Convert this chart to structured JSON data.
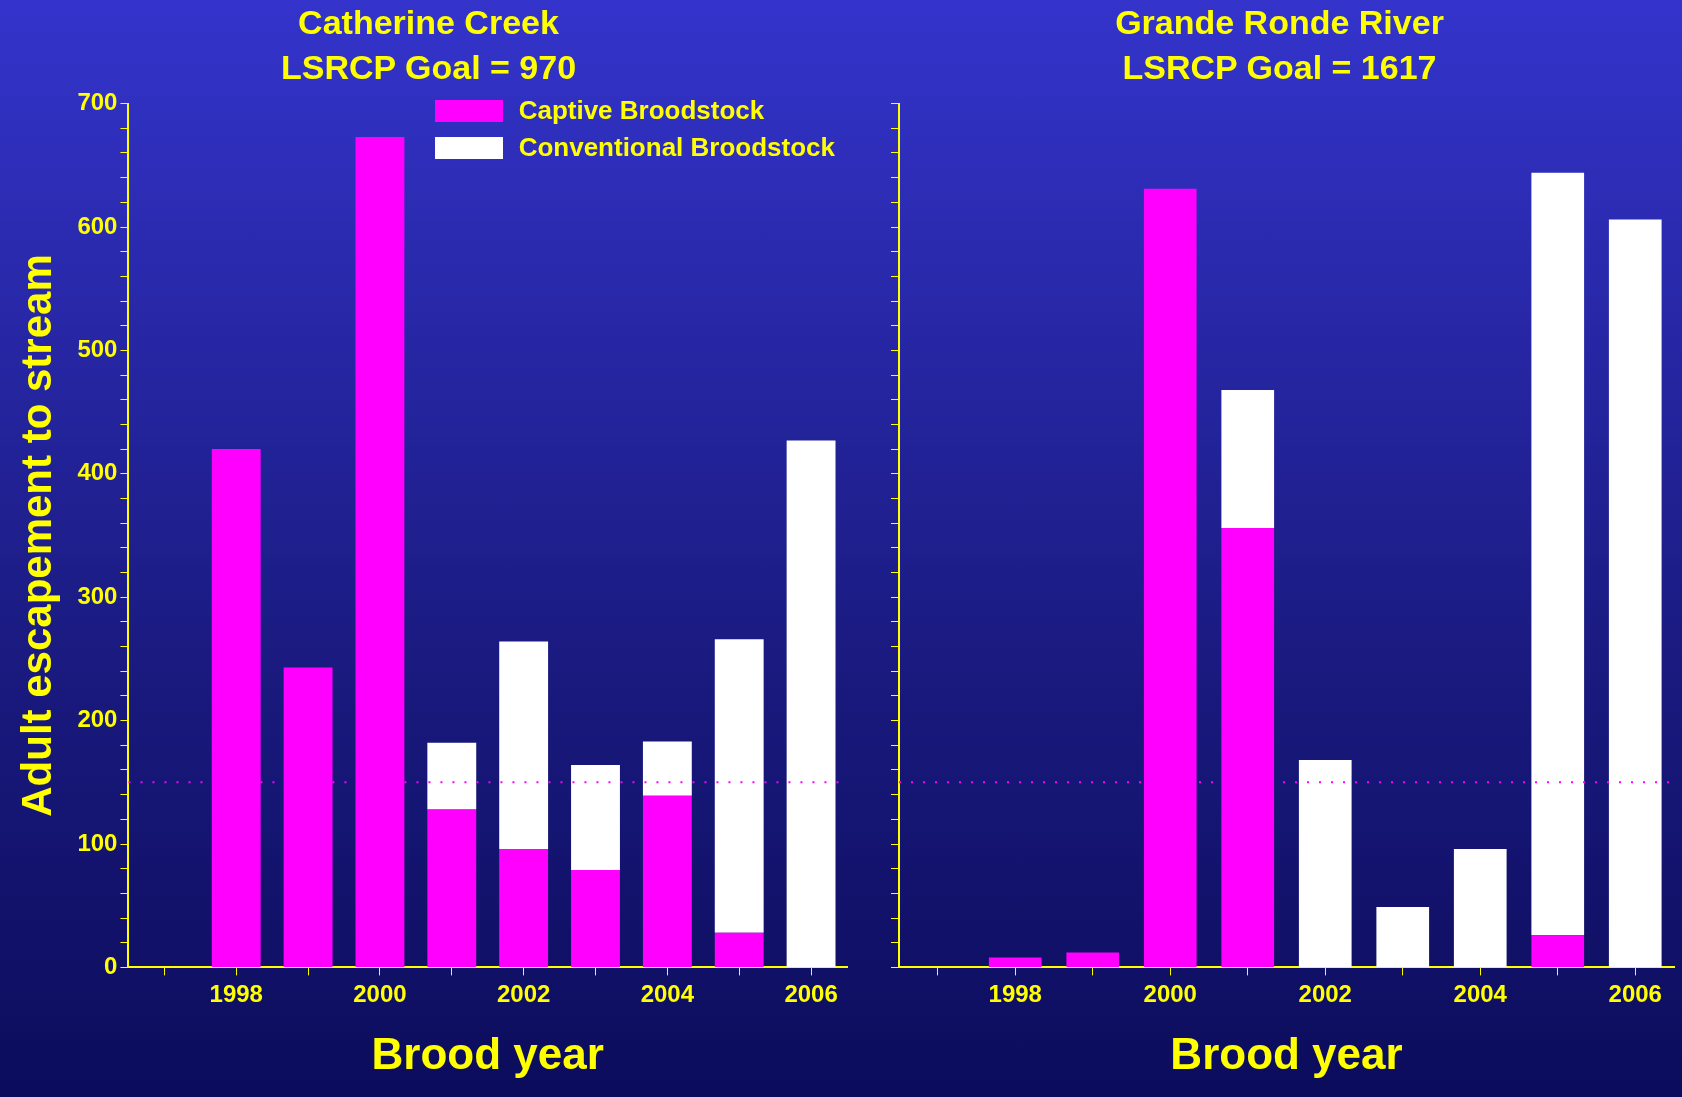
{
  "chart_data": [
    {
      "type": "bar",
      "title": "Catherine Creek",
      "subtitle": "LSRCP Goal = 970",
      "xlabel": "Brood year",
      "ylabel": "Adult escapement to stream",
      "stacked": true,
      "legend": "top right",
      "categories": [
        null,
        "1998",
        null,
        "2000",
        null,
        "2002",
        null,
        "2004",
        null,
        "2006"
      ],
      "series": [
        {
          "name": "Captive Broodstock",
          "color": "#ff00ff",
          "values": [
            null,
            420,
            243,
            673,
            128,
            96,
            79,
            139,
            28,
            null
          ]
        },
        {
          "name": "Conventional Broodstock",
          "color": "#ffffff",
          "values": [
            null,
            null,
            null,
            null,
            54,
            168,
            85,
            44,
            238,
            427
          ]
        }
      ],
      "ylim": [
        0,
        700
      ],
      "yticks": [
        0,
        {
          "value": 20,
          "label": null
        },
        {
          "value": 40,
          "label": null
        },
        {
          "value": 60,
          "label": null
        },
        {
          "value": 80,
          "label": null
        },
        100,
        {
          "value": 120,
          "label": null
        },
        {
          "value": 140,
          "label": null
        },
        {
          "value": 160,
          "label": null
        },
        {
          "value": 180,
          "label": null
        },
        200,
        {
          "value": 220,
          "label": null
        },
        {
          "value": 240,
          "label": null
        },
        {
          "value": 260,
          "label": null
        },
        {
          "value": 280,
          "label": null
        },
        300,
        {
          "value": 320,
          "label": null
        },
        {
          "value": 340,
          "label": null
        },
        {
          "value": 360,
          "label": null
        },
        {
          "value": 380,
          "label": null
        },
        400,
        {
          "value": 420,
          "label": null
        },
        {
          "value": 440,
          "label": null
        },
        {
          "value": 460,
          "label": null
        },
        {
          "value": 480,
          "label": null
        },
        500,
        {
          "value": 520,
          "label": null
        },
        {
          "value": 540,
          "label": null
        },
        {
          "value": 560,
          "label": null
        },
        {
          "value": 580,
          "label": null
        },
        600,
        {
          "value": 620,
          "label": null
        },
        {
          "value": 640,
          "label": null
        },
        {
          "value": 660,
          "label": null
        },
        {
          "value": 680,
          "label": null
        },
        700
      ],
      "ref_lines": [
        {
          "axis": "y",
          "value": 150,
          "color": "#ff00ff",
          "line_style": "dotted"
        }
      ],
      "grid": false
    },
    {
      "type": "bar",
      "title": "Grande Ronde River",
      "subtitle": "LSRCP Goal = 1617",
      "xlabel": "Brood year",
      "stacked": true,
      "tick_labels": "x",
      "categories": [
        null,
        "1998",
        null,
        "2000",
        null,
        "2002",
        null,
        "2004",
        null,
        "2006"
      ],
      "series": [
        {
          "color": "#ff00ff",
          "values": [
            null,
            8,
            12,
            631,
            356,
            null,
            null,
            null,
            26,
            null
          ]
        },
        {
          "color": "#ffffff",
          "values": [
            null,
            null,
            null,
            null,
            112,
            168,
            49,
            96,
            618,
            606
          ]
        }
      ],
      "ylim": [
        0,
        700
      ],
      "yticks": [
        0,
        {
          "value": 20,
          "label": null
        },
        {
          "value": 40,
          "label": null
        },
        {
          "value": 60,
          "label": null
        },
        {
          "value": 80,
          "label": null
        },
        100,
        {
          "value": 120,
          "label": null
        },
        {
          "value": 140,
          "label": null
        },
        {
          "value": 160,
          "label": null
        },
        {
          "value": 180,
          "label": null
        },
        200,
        {
          "value": 220,
          "label": null
        },
        {
          "value": 240,
          "label": null
        },
        {
          "value": 260,
          "label": null
        },
        {
          "value": 280,
          "label": null
        },
        300,
        {
          "value": 320,
          "label": null
        },
        {
          "value": 340,
          "label": null
        },
        {
          "value": 360,
          "label": null
        },
        {
          "value": 380,
          "label": null
        },
        400,
        {
          "value": 420,
          "label": null
        },
        {
          "value": 440,
          "label": null
        },
        {
          "value": 460,
          "label": null
        },
        {
          "value": 480,
          "label": null
        },
        500,
        {
          "value": 520,
          "label": null
        },
        {
          "value": 540,
          "label": null
        },
        {
          "value": 560,
          "label": null
        },
        {
          "value": 580,
          "label": null
        },
        600,
        {
          "value": 620,
          "label": null
        },
        {
          "value": 640,
          "label": null
        },
        {
          "value": 660,
          "label": null
        },
        {
          "value": 680,
          "label": null
        },
        700
      ],
      "ref_lines": [
        {
          "axis": "y",
          "value": 150,
          "color": "#ff00ff",
          "line_style": "dotted"
        }
      ],
      "grid": false
    }
  ]
}
